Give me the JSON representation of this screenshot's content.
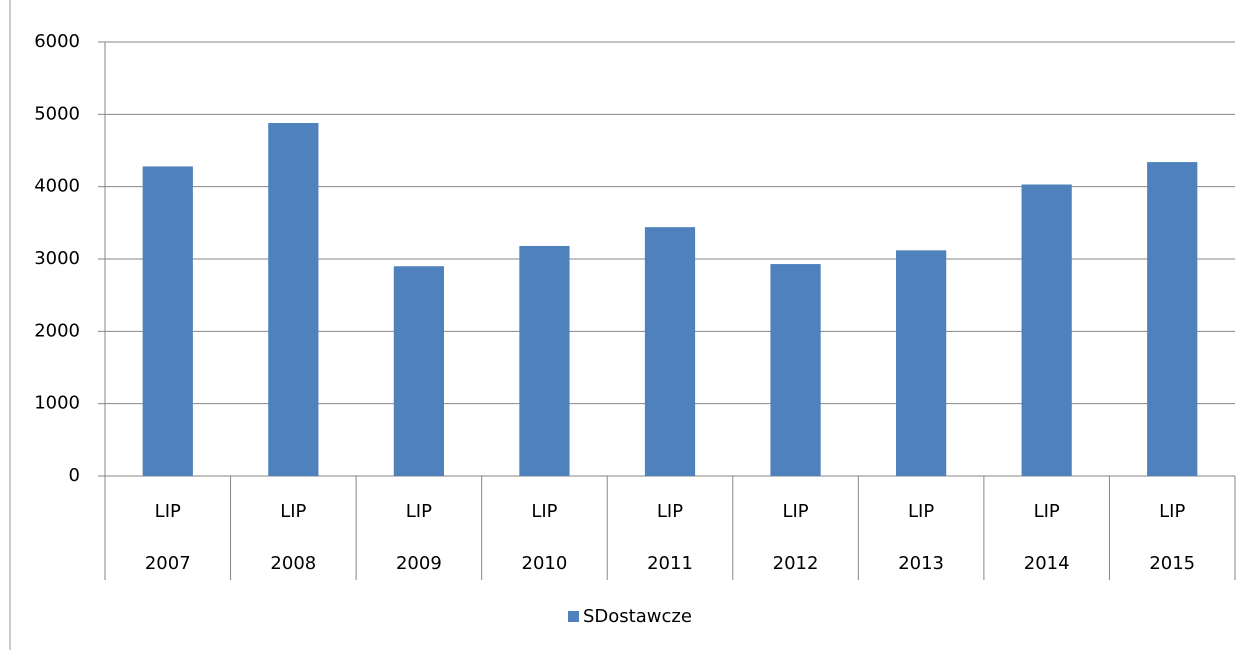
{
  "chart_data": {
    "type": "bar",
    "categories": [
      [
        "LIP",
        "2007"
      ],
      [
        "LIP",
        "2008"
      ],
      [
        "LIP",
        "2009"
      ],
      [
        "LIP",
        "2010"
      ],
      [
        "LIP",
        "2011"
      ],
      [
        "LIP",
        "2012"
      ],
      [
        "LIP",
        "2013"
      ],
      [
        "LIP",
        "2014"
      ],
      [
        "LIP",
        "2015"
      ]
    ],
    "series": [
      {
        "name": "SDostawcze",
        "color": "#4f81bd",
        "values": [
          4280,
          4880,
          2900,
          3180,
          3440,
          2930,
          3120,
          4030,
          4340
        ]
      }
    ],
    "ylim": [
      0,
      6000
    ],
    "yticks": [
      0,
      1000,
      2000,
      3000,
      4000,
      5000,
      6000
    ],
    "grid": true,
    "legend": "bottom"
  }
}
